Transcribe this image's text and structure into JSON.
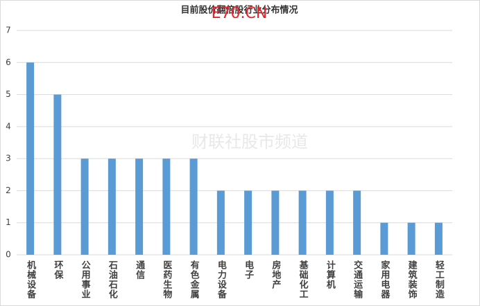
{
  "chart_data": {
    "type": "bar",
    "title": "目前股价翻倍股行业分布情况",
    "categories": [
      "机械设备",
      "环保",
      "公用事业",
      "石油石化",
      "通信",
      "医药生物",
      "有色金属",
      "电力设备",
      "电子",
      "房地产",
      "基础化工",
      "计算机",
      "交通运输",
      "家用电器",
      "建筑装饰",
      "轻工制造"
    ],
    "values": [
      6,
      5,
      3,
      3,
      3,
      3,
      3,
      2,
      2,
      2,
      2,
      2,
      2,
      1,
      1,
      1
    ],
    "color": "#5b9bd5",
    "ylim": [
      0,
      7
    ],
    "yticks": [
      0,
      1,
      2,
      3,
      4,
      5,
      6,
      7
    ],
    "grid": true,
    "watermark": "财联社股市频道",
    "overlay": "E70.CN"
  }
}
